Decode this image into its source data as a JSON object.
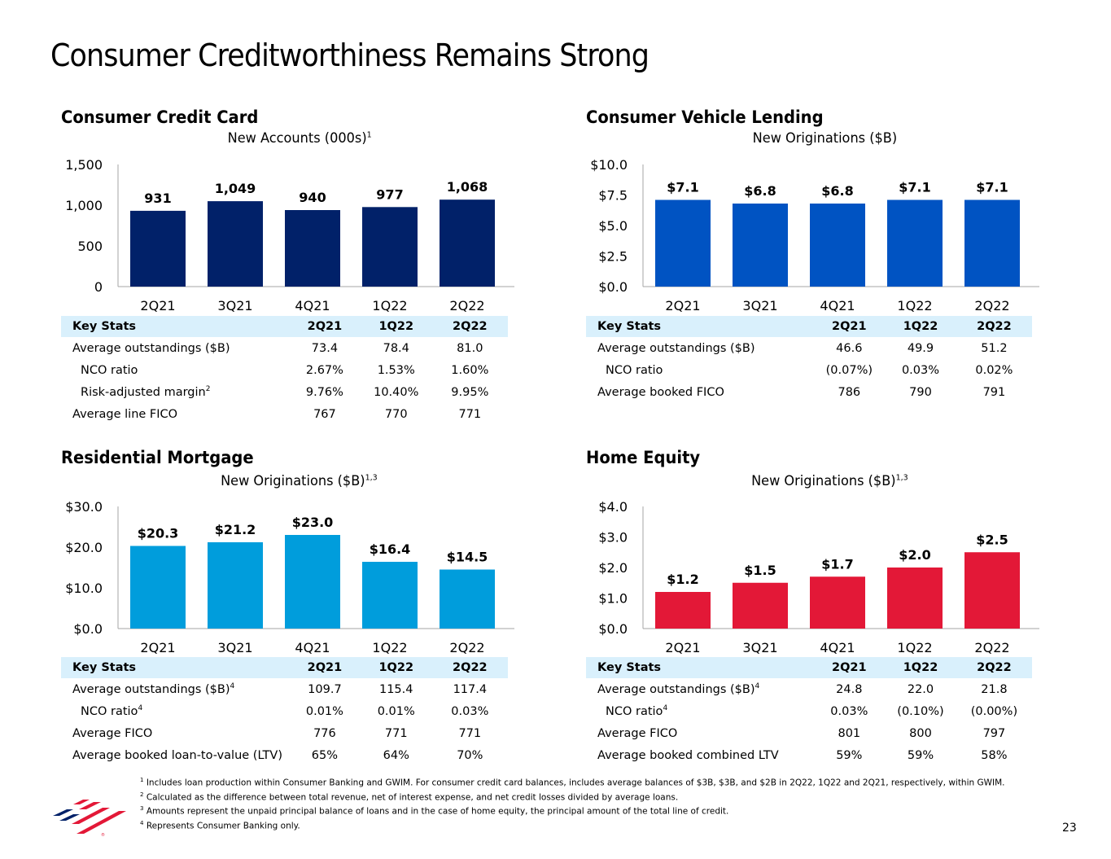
{
  "page": {
    "title": "Consumer Creditworthiness Remains Strong",
    "page_number": "23",
    "colors": {
      "navy": "#012169",
      "blue": "#0053c2",
      "sky": "#009ddc",
      "red": "#e31837",
      "table_header": "#d9f0fc"
    }
  },
  "sections": {
    "credit_card": {
      "title": "Consumer Credit Card",
      "subtitle": "New Accounts (000s)",
      "subtitle_sup": "1",
      "stats": {
        "headers": [
          "Key Stats",
          "2Q21",
          "1Q22",
          "2Q22"
        ],
        "rows": [
          {
            "label": "Average outstandings ($B)",
            "sup": "",
            "indent": false,
            "values": [
              "73.4",
              "78.4",
              "81.0"
            ]
          },
          {
            "label": "NCO ratio",
            "sup": "",
            "indent": true,
            "values": [
              "2.67%",
              "1.53%",
              "1.60%"
            ]
          },
          {
            "label": "Risk-adjusted margin",
            "sup": "2",
            "indent": true,
            "values": [
              "9.76%",
              "10.40%",
              "9.95%"
            ]
          },
          {
            "label": "Average line FICO",
            "sup": "",
            "indent": false,
            "values": [
              "767",
              "770",
              "771"
            ]
          }
        ]
      }
    },
    "vehicle": {
      "title": "Consumer Vehicle Lending",
      "subtitle": "New Originations ($B)",
      "subtitle_sup": "",
      "stats": {
        "headers": [
          "Key Stats",
          "2Q21",
          "1Q22",
          "2Q22"
        ],
        "rows": [
          {
            "label": "Average outstandings ($B)",
            "sup": "",
            "indent": false,
            "values": [
              "46.6",
              "49.9",
              "51.2"
            ]
          },
          {
            "label": "NCO ratio",
            "sup": "",
            "indent": true,
            "values": [
              "(0.07%)",
              "0.03%",
              "0.02%"
            ]
          },
          {
            "label": "Average booked FICO",
            "sup": "",
            "indent": false,
            "values": [
              "786",
              "790",
              "791"
            ]
          }
        ]
      }
    },
    "mortgage": {
      "title": "Residential Mortgage",
      "subtitle": "New Originations ($B)",
      "subtitle_sup": "1,3",
      "stats": {
        "headers": [
          "Key Stats",
          "2Q21",
          "1Q22",
          "2Q22"
        ],
        "rows": [
          {
            "label": "Average outstandings ($B)",
            "sup": "4",
            "indent": false,
            "values": [
              "109.7",
              "115.4",
              "117.4"
            ]
          },
          {
            "label": "NCO ratio",
            "sup": "4",
            "indent": true,
            "values": [
              "0.01%",
              "0.01%",
              "0.03%"
            ]
          },
          {
            "label": "Average FICO",
            "sup": "",
            "indent": false,
            "values": [
              "776",
              "771",
              "771"
            ]
          },
          {
            "label": "Average booked loan-to-value (LTV)",
            "sup": "",
            "indent": false,
            "values": [
              "65%",
              "64%",
              "70%"
            ]
          }
        ]
      }
    },
    "home_equity": {
      "title": "Home Equity",
      "subtitle": "New Originations ($B)",
      "subtitle_sup": "1,3",
      "stats": {
        "headers": [
          "Key Stats",
          "2Q21",
          "1Q22",
          "2Q22"
        ],
        "rows": [
          {
            "label": "Average outstandings ($B)",
            "sup": "4",
            "indent": false,
            "values": [
              "24.8",
              "22.0",
              "21.8"
            ]
          },
          {
            "label": "NCO ratio",
            "sup": "4",
            "indent": true,
            "values": [
              "0.03%",
              "(0.10%)",
              "(0.00%)"
            ]
          },
          {
            "label": "Average FICO",
            "sup": "",
            "indent": false,
            "values": [
              "801",
              "800",
              "797"
            ]
          },
          {
            "label": "Average booked combined LTV",
            "sup": "",
            "indent": false,
            "values": [
              "59%",
              "59%",
              "58%"
            ]
          }
        ]
      }
    }
  },
  "chart_data": [
    {
      "id": "credit_card",
      "type": "bar",
      "title": "New Accounts (000s)",
      "categories": [
        "2Q21",
        "3Q21",
        "4Q21",
        "1Q22",
        "2Q22"
      ],
      "values": [
        931,
        1049,
        940,
        977,
        1068
      ],
      "value_labels": [
        "931",
        "1,049",
        "940",
        "977",
        "1,068"
      ],
      "yticks": [
        0,
        500,
        1000,
        1500
      ],
      "ytick_labels": [
        "0",
        "500",
        "1,000",
        "1,500"
      ],
      "ylim": [
        0,
        1500
      ],
      "color": "#012169",
      "xlabel": "",
      "ylabel": "",
      "grid": false,
      "legend": "none"
    },
    {
      "id": "vehicle",
      "type": "bar",
      "title": "New Originations ($B)",
      "categories": [
        "2Q21",
        "3Q21",
        "4Q21",
        "1Q22",
        "2Q22"
      ],
      "values": [
        7.1,
        6.8,
        6.8,
        7.1,
        7.1
      ],
      "value_labels": [
        "$7.1",
        "$6.8",
        "$6.8",
        "$7.1",
        "$7.1"
      ],
      "yticks": [
        0,
        2.5,
        5.0,
        7.5,
        10.0
      ],
      "ytick_labels": [
        "$0.0",
        "$2.5",
        "$5.0",
        "$7.5",
        "$10.0"
      ],
      "ylim": [
        0,
        10
      ],
      "color": "#0053c2",
      "xlabel": "",
      "ylabel": "",
      "grid": false,
      "legend": "none"
    },
    {
      "id": "mortgage",
      "type": "bar",
      "title": "New Originations ($B)",
      "categories": [
        "2Q21",
        "3Q21",
        "4Q21",
        "1Q22",
        "2Q22"
      ],
      "values": [
        20.3,
        21.2,
        23.0,
        16.4,
        14.5
      ],
      "value_labels": [
        "$20.3",
        "$21.2",
        "$23.0",
        "$16.4",
        "$14.5"
      ],
      "yticks": [
        0,
        10,
        20,
        30
      ],
      "ytick_labels": [
        "$0.0",
        "$10.0",
        "$20.0",
        "$30.0"
      ],
      "ylim": [
        0,
        30
      ],
      "color": "#009ddc",
      "xlabel": "",
      "ylabel": "",
      "grid": false,
      "legend": "none"
    },
    {
      "id": "home_equity",
      "type": "bar",
      "title": "New Originations ($B)",
      "categories": [
        "2Q21",
        "3Q21",
        "4Q21",
        "1Q22",
        "2Q22"
      ],
      "values": [
        1.2,
        1.5,
        1.7,
        2.0,
        2.5
      ],
      "value_labels": [
        "$1.2",
        "$1.5",
        "$1.7",
        "$2.0",
        "$2.5"
      ],
      "yticks": [
        0,
        1,
        2,
        3,
        4
      ],
      "ytick_labels": [
        "$0.0",
        "$1.0",
        "$2.0",
        "$3.0",
        "$4.0"
      ],
      "ylim": [
        0,
        4
      ],
      "color": "#e31837",
      "xlabel": "",
      "ylabel": "",
      "grid": false,
      "legend": "none"
    }
  ],
  "footnotes": [
    {
      "num": "1",
      "text": "Includes loan production within Consumer Banking and GWIM. For consumer credit card balances, includes average balances of $3B, $3B, and $2B in 2Q22, 1Q22 and 2Q21, respectively, within GWIM."
    },
    {
      "num": "2",
      "text": "Calculated as the difference between total revenue, net of interest expense, and net credit losses divided by average loans."
    },
    {
      "num": "3",
      "text": "Amounts represent the unpaid principal balance of loans and in the case of home equity, the principal amount of the total line of credit."
    },
    {
      "num": "4",
      "text": "Represents Consumer Banking only."
    }
  ],
  "logo": {
    "name": "Bank of America flag logo"
  }
}
